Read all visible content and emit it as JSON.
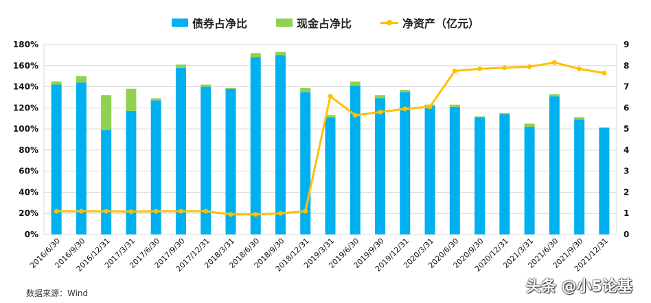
{
  "legend": {
    "bond": "债券占净比",
    "cash": "现金占净比",
    "nav": "净资产（亿元）"
  },
  "source": "数据来源：Wind",
  "watermark": "头条 @小5论基",
  "colors": {
    "bond": "#00b0f0",
    "cash": "#92d050",
    "nav": "#ffc000",
    "grid": "#d9d9d9"
  },
  "chart_data": {
    "type": "bar",
    "stacked": true,
    "categories": [
      "2016/6/30",
      "2016/9/30",
      "2016/12/31",
      "2017/3/31",
      "2017/6/30",
      "2017/9/30",
      "2017/12/31",
      "2018/3/31",
      "2018/6/30",
      "2018/9/30",
      "2018/12/31",
      "2019/3/31",
      "2019/6/30",
      "2019/9/30",
      "2019/12/31",
      "2020/3/31",
      "2020/6/30",
      "2020/9/30",
      "2020/12/31",
      "2021/3/31",
      "2021/6/30",
      "2021/9/30",
      "2021/12/31"
    ],
    "series": [
      {
        "name": "债券占净比",
        "type": "bar",
        "axis": "left",
        "unit": "%",
        "values": [
          142,
          144,
          99,
          117,
          127,
          158,
          140,
          138,
          168,
          170,
          135,
          111,
          141,
          129,
          135,
          122,
          121,
          111,
          114,
          102,
          131,
          109,
          101
        ]
      },
      {
        "name": "现金占净比",
        "type": "bar",
        "axis": "left",
        "unit": "%",
        "values": [
          3,
          6,
          33,
          21,
          2,
          3,
          2,
          1,
          4,
          3,
          4,
          2,
          4,
          3,
          2,
          1,
          2,
          1,
          1,
          3,
          2,
          2,
          0.5
        ]
      },
      {
        "name": "净资产（亿元）",
        "type": "line",
        "axis": "right",
        "values": [
          1.1,
          1.1,
          1.1,
          1.08,
          1.1,
          1.1,
          1.1,
          0.95,
          0.95,
          1.0,
          1.1,
          6.55,
          5.65,
          5.8,
          5.95,
          6.05,
          7.75,
          7.85,
          7.9,
          7.95,
          8.15,
          7.85,
          7.65
        ]
      }
    ],
    "ylim_left": [
      0,
      180
    ],
    "yticks_left": [
      "0%",
      "20%",
      "40%",
      "60%",
      "80%",
      "100%",
      "120%",
      "140%",
      "160%",
      "180%"
    ],
    "ylim_right": [
      0,
      9
    ],
    "yticks_right": [
      "0",
      "1",
      "2",
      "3",
      "4",
      "5",
      "6",
      "7",
      "8",
      "9"
    ],
    "grid": true,
    "legend_position": "top-center"
  }
}
